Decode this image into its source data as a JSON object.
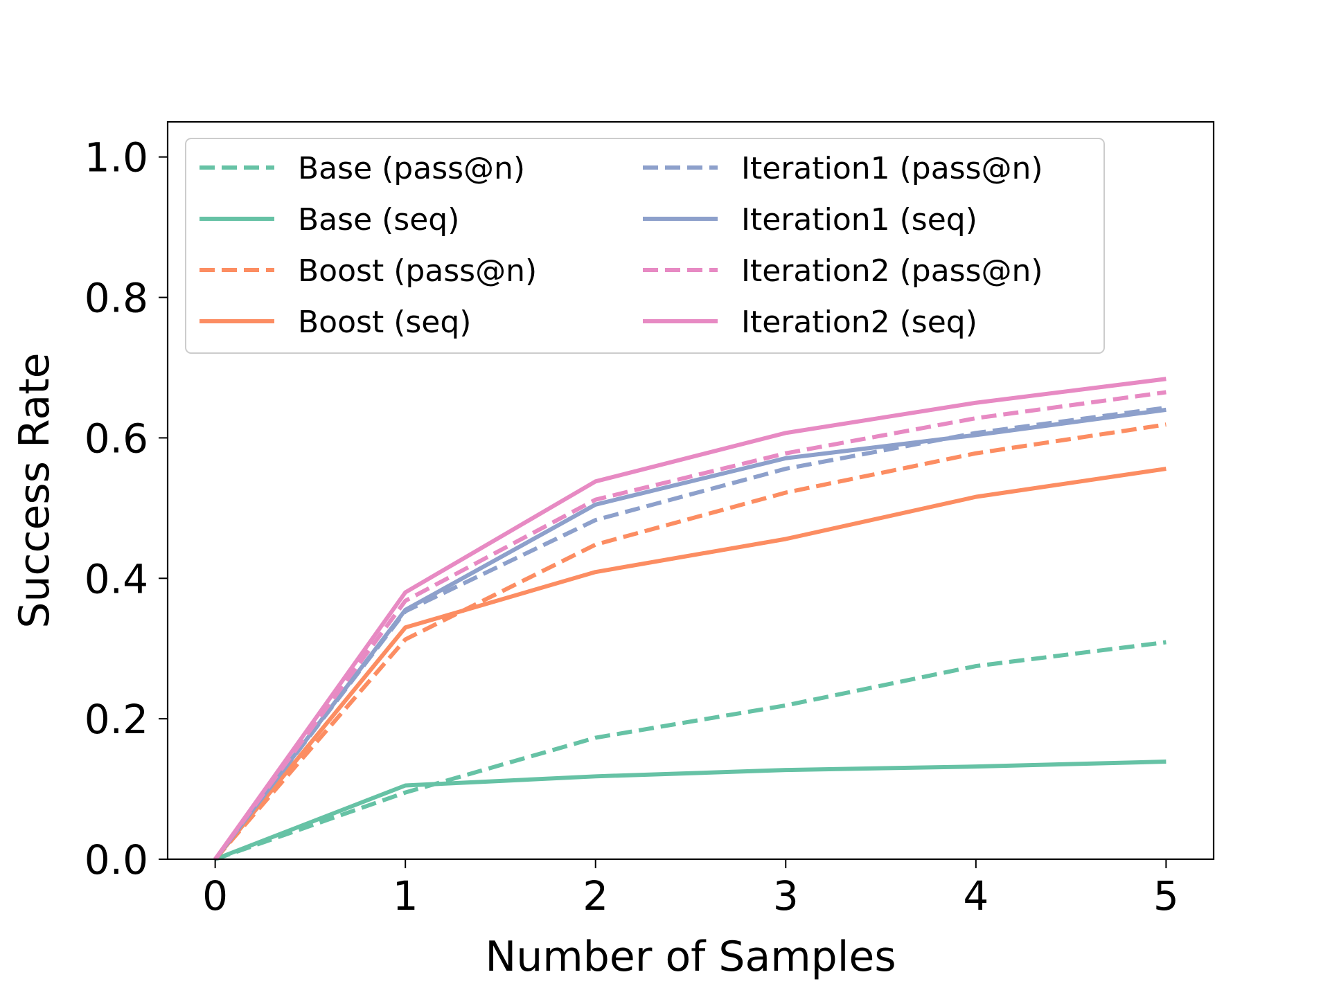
{
  "chart_data": {
    "type": "line",
    "title": "",
    "xlabel": "Number of Samples",
    "ylabel": "Success Rate",
    "xlim": [
      -0.25,
      5.25
    ],
    "ylim": [
      0.0,
      1.05
    ],
    "xticks": [
      0,
      1,
      2,
      3,
      4,
      5
    ],
    "xtick_labels": [
      "0",
      "1",
      "2",
      "3",
      "4",
      "5"
    ],
    "yticks": [
      0.0,
      0.2,
      0.4,
      0.6,
      0.8,
      1.0
    ],
    "ytick_labels": [
      "0.0",
      "0.2",
      "0.4",
      "0.6",
      "0.8",
      "1.0"
    ],
    "grid": false,
    "legend_position": "top-left",
    "legend_columns": 2,
    "x": [
      0,
      1,
      2,
      3,
      4,
      5
    ],
    "series": [
      {
        "name": "Base (pass@n)",
        "color": "#66c2a5",
        "style": "dashed",
        "values": [
          0.0,
          0.095,
          0.173,
          0.219,
          0.275,
          0.309
        ]
      },
      {
        "name": "Base (seq)",
        "color": "#66c2a5",
        "style": "solid",
        "values": [
          0.0,
          0.105,
          0.118,
          0.127,
          0.132,
          0.139
        ]
      },
      {
        "name": "Boost (pass@n)",
        "color": "#fc8d62",
        "style": "dashed",
        "values": [
          0.0,
          0.313,
          0.448,
          0.522,
          0.578,
          0.619
        ]
      },
      {
        "name": "Boost (seq)",
        "color": "#fc8d62",
        "style": "solid",
        "values": [
          0.0,
          0.33,
          0.409,
          0.456,
          0.516,
          0.556
        ]
      },
      {
        "name": "Iteration1 (pass@n)",
        "color": "#8da0cb",
        "style": "dashed",
        "values": [
          0.0,
          0.353,
          0.483,
          0.556,
          0.607,
          0.643
        ]
      },
      {
        "name": "Iteration1 (seq)",
        "color": "#8da0cb",
        "style": "solid",
        "values": [
          0.0,
          0.355,
          0.505,
          0.571,
          0.604,
          0.64
        ]
      },
      {
        "name": "Iteration2 (pass@n)",
        "color": "#e78ac3",
        "style": "dashed",
        "values": [
          0.0,
          0.368,
          0.512,
          0.578,
          0.628,
          0.665
        ]
      },
      {
        "name": "Iteration2 (seq)",
        "color": "#e78ac3",
        "style": "solid",
        "values": [
          0.0,
          0.38,
          0.538,
          0.607,
          0.65,
          0.684
        ]
      }
    ]
  }
}
